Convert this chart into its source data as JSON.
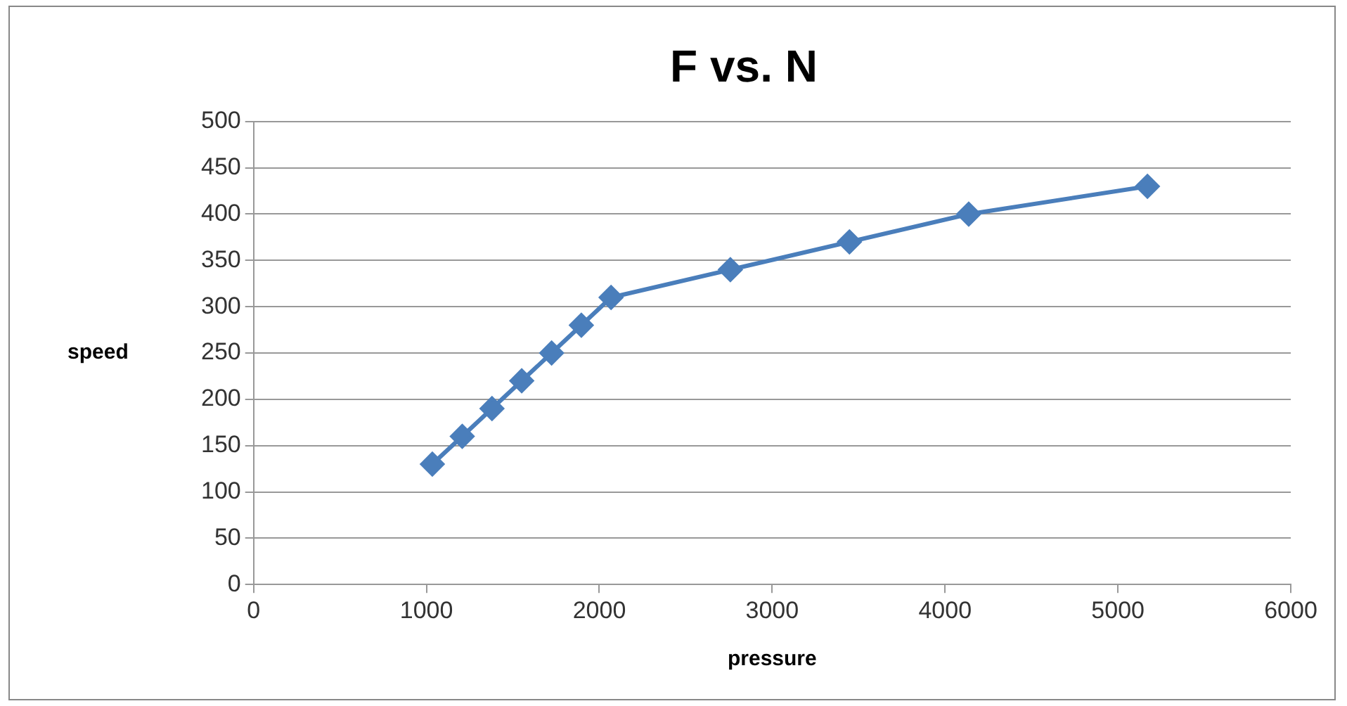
{
  "chart_data": {
    "type": "scatter",
    "title": "F vs. N",
    "xlabel": "pressure",
    "ylabel": "speed",
    "xlim": [
      0,
      6000
    ],
    "xticks": [
      0,
      1000,
      2000,
      3000,
      4000,
      5000,
      6000
    ],
    "ylim": [
      0,
      500
    ],
    "yticks": [
      0,
      50,
      100,
      150,
      200,
      250,
      300,
      350,
      400,
      450,
      500
    ],
    "grid": "y",
    "legend": false,
    "marker": "diamond",
    "line_style": "solid",
    "series": [
      {
        "type": "line",
        "color": "#4a7ebb",
        "x": [
          1034,
          1207,
          1379,
          1551,
          1724,
          1896,
          2068,
          2758,
          3447,
          4137,
          5171
        ],
        "values": [
          130,
          160,
          190,
          220,
          250,
          280,
          310,
          340,
          370,
          400,
          430
        ]
      }
    ]
  }
}
